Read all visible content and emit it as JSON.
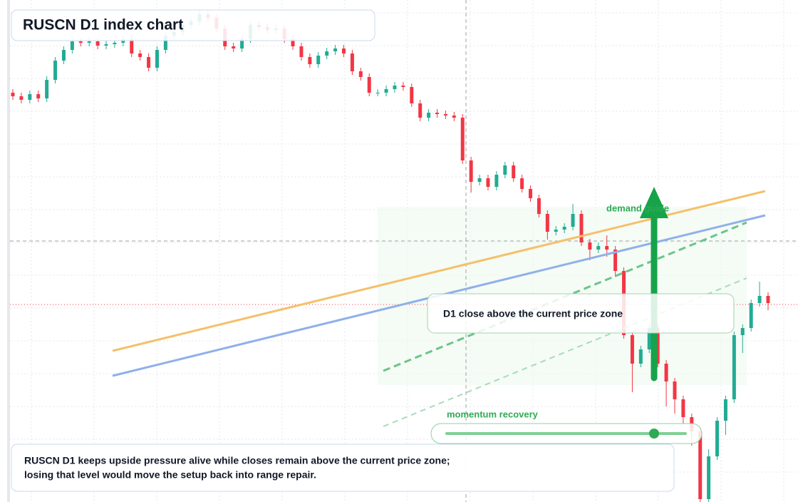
{
  "chart_data": {
    "type": "candlestick",
    "title": "RUSCN D1 index chart",
    "ylim": [
      0,
      704
    ],
    "up_color": "#22ab94",
    "down_color": "#f23645",
    "open": [
      574,
      569,
      564,
      572,
      566,
      592,
      619,
      634,
      646,
      644,
      646,
      640,
      642,
      644,
      649,
      629,
      624,
      609,
      634,
      654,
      659,
      669,
      674,
      684,
      679,
      664,
      639,
      636,
      649,
      669,
      666,
      662,
      664,
      649,
      639,
      624,
      614,
      626,
      632,
      636,
      629,
      604,
      596,
      574,
      574,
      579,
      584,
      582,
      559,
      539,
      546,
      544,
      542,
      539,
      479,
      449,
      454,
      442,
      459,
      472,
      454,
      439,
      426,
      404,
      379,
      382,
      386,
      404,
      364,
      354,
      359,
      354,
      324,
      234,
      194,
      214,
      244,
      194,
      169,
      144,
      119,
      99,
      4,
      64,
      114,
      144,
      234,
      244,
      279,
      289
    ],
    "high": [
      579,
      574,
      577,
      577,
      597,
      624,
      639,
      651,
      651,
      651,
      651,
      647,
      649,
      654,
      654,
      634,
      629,
      639,
      659,
      664,
      674,
      679,
      689,
      689,
      684,
      669,
      644,
      654,
      674,
      674,
      671,
      669,
      669,
      654,
      644,
      629,
      631,
      637,
      641,
      641,
      634,
      609,
      601,
      579,
      584,
      589,
      589,
      587,
      564,
      551,
      551,
      549,
      547,
      544,
      484,
      459,
      459,
      464,
      477,
      477,
      459,
      444,
      431,
      409,
      387,
      391,
      418,
      409,
      369,
      364,
      374,
      359,
      329,
      239,
      219,
      249,
      249,
      199,
      174,
      149,
      124,
      104,
      74,
      119,
      149,
      239,
      249,
      284,
      309,
      294
    ],
    "low": [
      564,
      559,
      559,
      561,
      561,
      587,
      614,
      629,
      639,
      639,
      635,
      635,
      637,
      639,
      624,
      619,
      604,
      604,
      629,
      649,
      654,
      664,
      669,
      674,
      659,
      634,
      631,
      631,
      644,
      661,
      657,
      657,
      644,
      634,
      619,
      609,
      609,
      621,
      627,
      624,
      599,
      591,
      569,
      569,
      569,
      574,
      577,
      554,
      534,
      534,
      539,
      537,
      534,
      474,
      434,
      444,
      437,
      437,
      454,
      449,
      434,
      421,
      399,
      368,
      374,
      377,
      381,
      359,
      339,
      349,
      344,
      316,
      229,
      154,
      189,
      209,
      189,
      134,
      124,
      109,
      79,
      0,
      0,
      59,
      94,
      139,
      209,
      239,
      274,
      269
    ],
    "close": [
      569,
      564,
      572,
      566,
      592,
      619,
      634,
      646,
      644,
      646,
      640,
      642,
      644,
      649,
      629,
      624,
      609,
      634,
      654,
      659,
      669,
      674,
      684,
      679,
      664,
      639,
      636,
      649,
      669,
      666,
      662,
      664,
      649,
      639,
      624,
      614,
      626,
      632,
      636,
      629,
      604,
      596,
      574,
      574,
      579,
      584,
      582,
      559,
      539,
      546,
      544,
      542,
      539,
      479,
      449,
      454,
      442,
      459,
      472,
      454,
      439,
      426,
      404,
      379,
      382,
      386,
      404,
      364,
      354,
      359,
      354,
      324,
      234,
      194,
      214,
      244,
      194,
      169,
      144,
      119,
      99,
      4,
      64,
      114,
      144,
      234,
      244,
      279,
      289,
      279
    ],
    "annotations": {
      "zone_label": "demand guide",
      "zone_note": "D1 close above the current price zone",
      "momentum_label": "momentum recovery"
    },
    "note": [
      "RUSCN D1 keeps upside pressure alive while closes remain above the current price zone;",
      "losing that level would move the setup back into range repair."
    ]
  }
}
